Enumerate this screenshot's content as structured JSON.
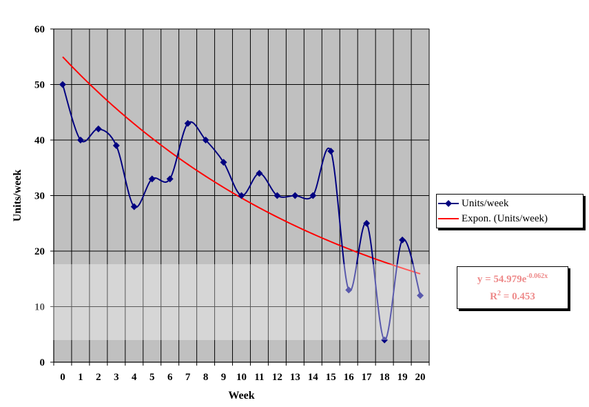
{
  "chart_data": {
    "type": "line",
    "xlabel": "Week",
    "ylabel": "Units/week",
    "x": [
      0,
      1,
      2,
      3,
      4,
      5,
      6,
      7,
      8,
      9,
      10,
      11,
      12,
      13,
      14,
      15,
      16,
      17,
      18,
      19,
      20
    ],
    "series": [
      {
        "name": "Units/week",
        "color": "#000080",
        "marker": "diamond",
        "smooth": true,
        "values": [
          50,
          40,
          42,
          39,
          28,
          33,
          33,
          43,
          40,
          36,
          30,
          34,
          30,
          30,
          30,
          38,
          13,
          25,
          4,
          22,
          12
        ]
      }
    ],
    "trendline": {
      "name": "Expon. (Units/week)",
      "color": "#ff0000",
      "type": "exponential",
      "a": 54.979,
      "b": -0.062
    },
    "equation": {
      "line1_prefix": "y = 54.979e",
      "line1_exponent": "-0.062x",
      "line2_prefix": "R",
      "line2_exponent": "2",
      "line2_suffix": " = 0.453"
    },
    "xlim": [
      0,
      20
    ],
    "ylim": [
      0,
      60
    ],
    "yticks": [
      0,
      10,
      20,
      30,
      40,
      50,
      60
    ],
    "grid": true,
    "plot_background": "#c0c0c0",
    "legend_position": "right"
  }
}
